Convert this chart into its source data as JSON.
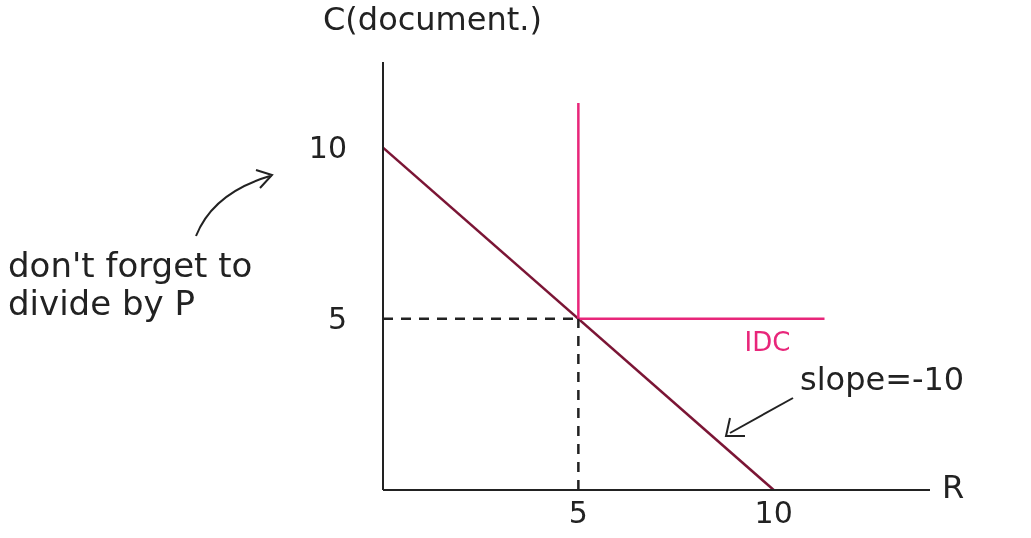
{
  "chart_data": {
    "type": "line",
    "xlabel": "R",
    "ylabel": "C(document.)",
    "xlim": [
      0,
      14
    ],
    "ylim": [
      0,
      12.5
    ],
    "xticks": [
      5,
      10
    ],
    "yticks": [
      5,
      10
    ],
    "grid": false,
    "legend": false,
    "marker": "none",
    "annotations": [
      "don't forget to divide by P",
      "slope=-10"
    ],
    "series": [
      {
        "color": "#7b1535",
        "x": [
          0,
          10
        ],
        "values": [
          10,
          0
        ]
      },
      {
        "name": "IDC",
        "color": "#e8267a",
        "x": [
          5,
          5,
          11.3
        ],
        "values": [
          11.3,
          5,
          5
        ]
      },
      {
        "color": "#222222",
        "x": [
          0,
          5
        ],
        "values": [
          5,
          5
        ],
        "line_style": "dashed"
      },
      {
        "color": "#222222",
        "x": [
          5,
          5
        ],
        "values": [
          0,
          5
        ],
        "line_style": "dashed"
      }
    ]
  }
}
